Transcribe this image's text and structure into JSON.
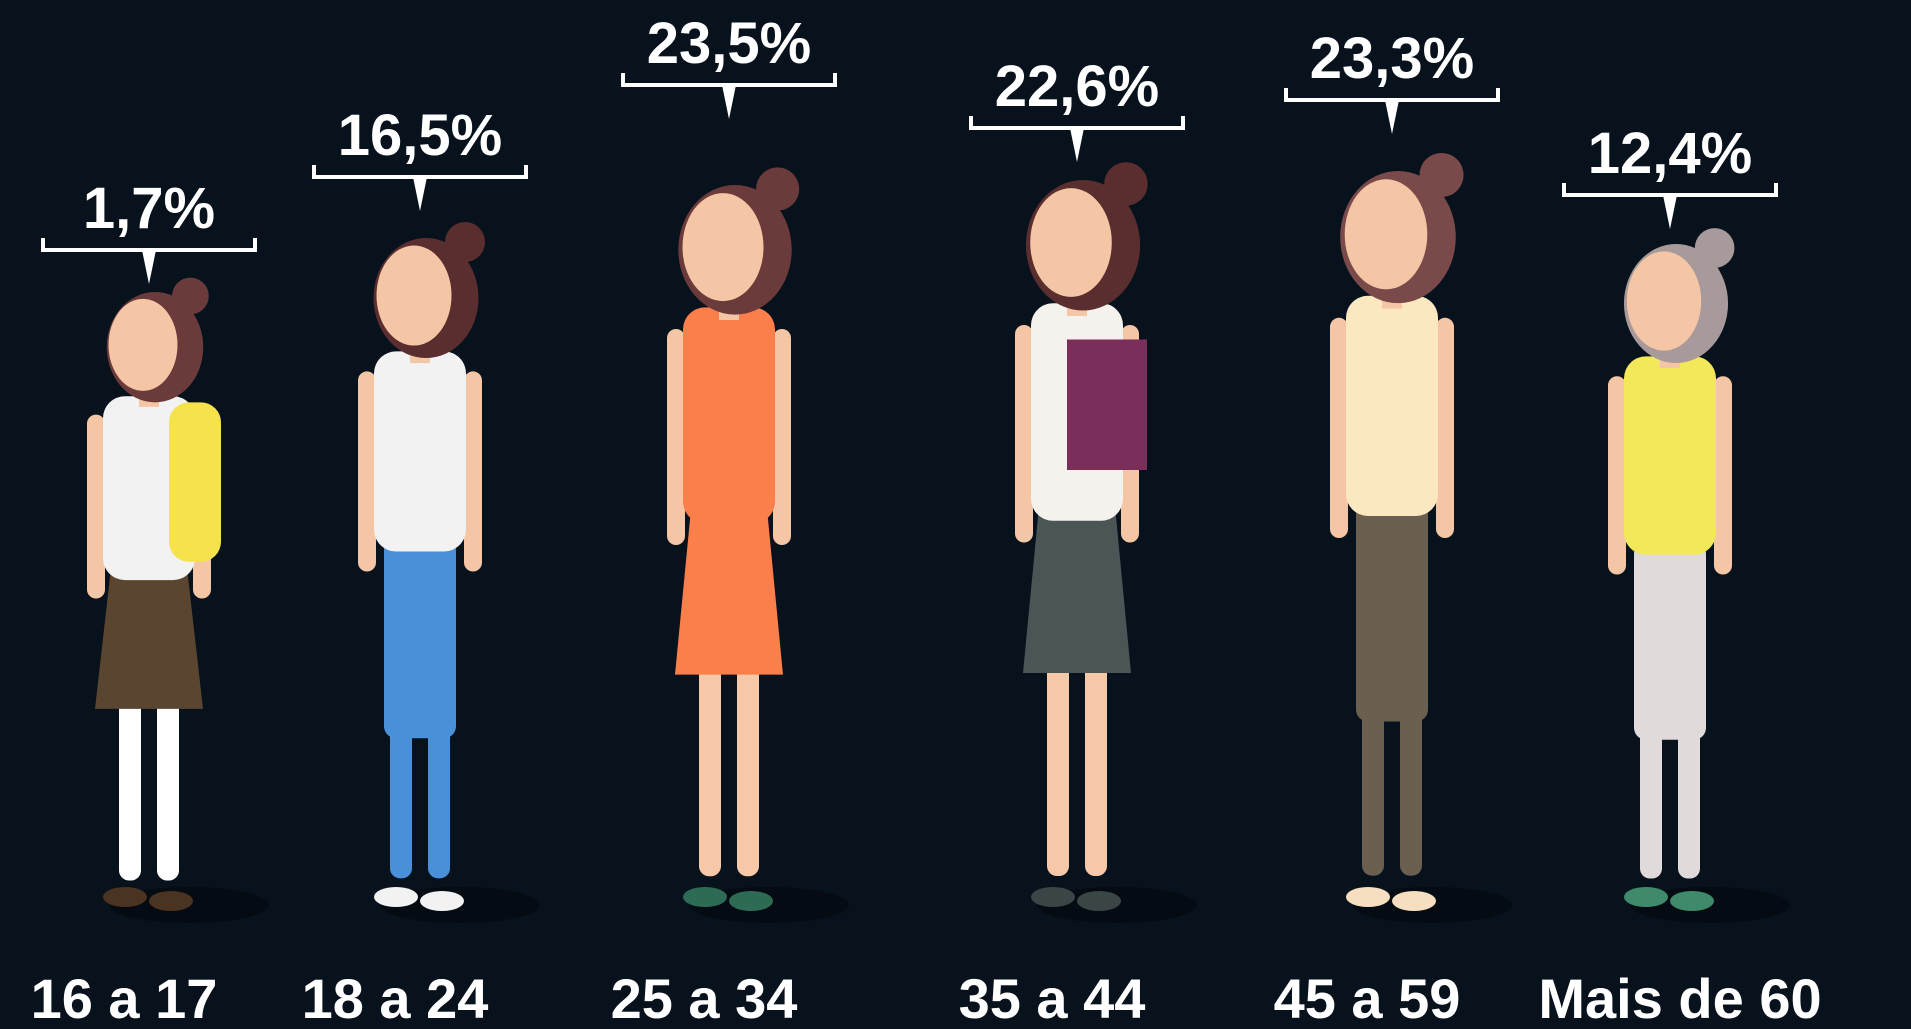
{
  "chart_data": {
    "type": "pictogram",
    "categories": [
      "16 a 17",
      "18 a 24",
      "25 a 34",
      "35 a 44",
      "45 a 59",
      "Mais de 60"
    ],
    "values": [
      1.7,
      16.5,
      23.5,
      22.6,
      23.3,
      12.4
    ],
    "value_labels": [
      "1,7%",
      "16,5%",
      "23,5%",
      "22,6%",
      "23,3%",
      "12,4%"
    ]
  }
}
